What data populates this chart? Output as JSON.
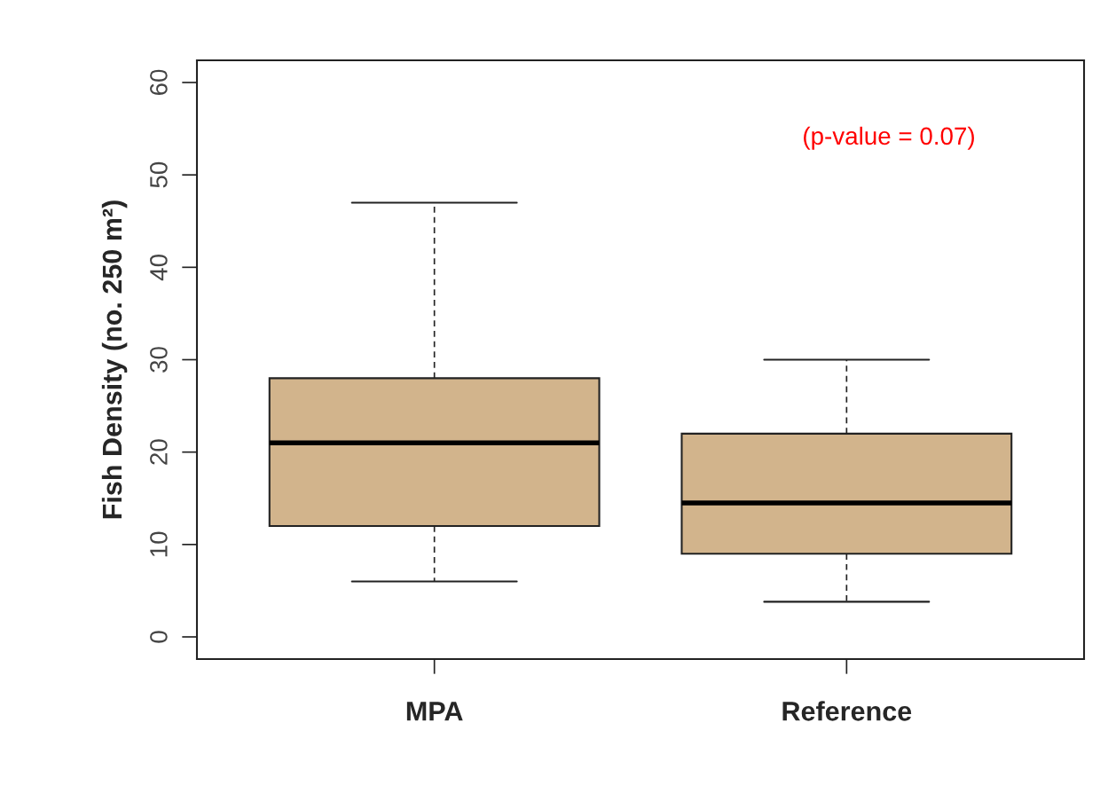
{
  "chart_data": {
    "type": "box",
    "ylabel": "Fish Density (no. 250 m²)",
    "categories": [
      "MPA",
      "Reference"
    ],
    "boxes": [
      {
        "low": 6,
        "q1": 12,
        "median": 21,
        "q3": 28,
        "high": 47
      },
      {
        "low": 3.8,
        "q1": 9,
        "median": 14.5,
        "q3": 22,
        "high": 30
      }
    ],
    "color": "#d2b48c",
    "ylim": [
      -2.4,
      62.4
    ],
    "yticks": [
      0,
      10,
      20,
      30,
      40,
      50,
      60
    ],
    "grid": false,
    "legend": false,
    "annotations": [
      "(p-value = 0.07)"
    ]
  }
}
